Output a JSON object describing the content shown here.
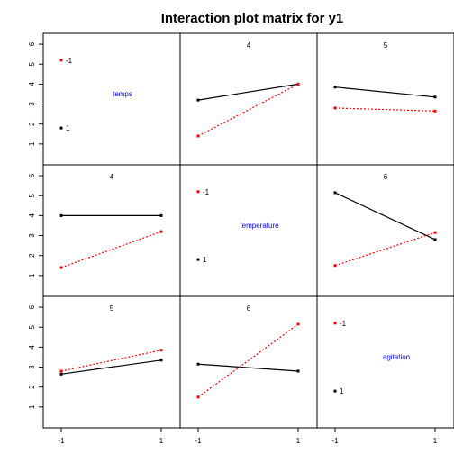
{
  "chart_data": {
    "type": "line",
    "title": "Interaction plot matrix for y1",
    "factors": [
      "temps",
      "temperature",
      "agitation"
    ],
    "x": [
      -1,
      1
    ],
    "x_tick_labels": [
      "-1",
      "1"
    ],
    "ylim": [
      0,
      6.5
    ],
    "y_ticks": [
      1,
      2,
      3,
      4,
      5,
      6
    ],
    "y_tick_labels": [
      "1",
      "2",
      "3",
      "4",
      "5",
      "6"
    ],
    "legend_levels": [
      "-1",
      "1"
    ],
    "colors": {
      "level_-1": "#ff0000",
      "level_1": "#000000",
      "diagonal_label": "#0000ff"
    },
    "panels": [
      {
        "row": 0,
        "col": 1,
        "label": "4",
        "series": [
          {
            "level": "1",
            "values": [
              3.2,
              4.0
            ]
          },
          {
            "level": "-1",
            "values": [
              1.4,
              4.0
            ]
          }
        ]
      },
      {
        "row": 0,
        "col": 2,
        "label": "5",
        "series": [
          {
            "level": "1",
            "values": [
              3.85,
              3.35
            ]
          },
          {
            "level": "-1",
            "values": [
              2.8,
              2.65
            ]
          }
        ]
      },
      {
        "row": 1,
        "col": 0,
        "label": "4",
        "series": [
          {
            "level": "1",
            "values": [
              4.0,
              4.0
            ]
          },
          {
            "level": "-1",
            "values": [
              1.4,
              3.2
            ]
          }
        ]
      },
      {
        "row": 1,
        "col": 2,
        "label": "6",
        "series": [
          {
            "level": "1",
            "values": [
              5.15,
              2.8
            ]
          },
          {
            "level": "-1",
            "values": [
              1.5,
              3.15
            ]
          }
        ]
      },
      {
        "row": 2,
        "col": 0,
        "label": "5",
        "series": [
          {
            "level": "1",
            "values": [
              2.65,
              3.35
            ]
          },
          {
            "level": "-1",
            "values": [
              2.8,
              3.85
            ]
          }
        ]
      },
      {
        "row": 2,
        "col": 1,
        "label": "6",
        "series": [
          {
            "level": "1",
            "values": [
              3.15,
              2.8
            ]
          },
          {
            "level": "-1",
            "values": [
              1.5,
              5.15
            ]
          }
        ]
      }
    ],
    "diagonal_legend": [
      {
        "level": "-1",
        "value": 5.2
      },
      {
        "level": "1",
        "value": 1.8
      }
    ]
  }
}
